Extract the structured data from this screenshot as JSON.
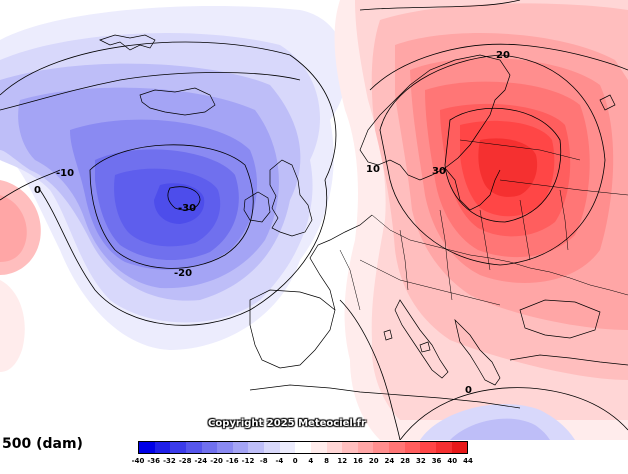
{
  "map": {
    "title": "500 (dam)",
    "copyright": "Copyright 2025 Meteociel.fr",
    "contour_labels": [
      "20",
      "10",
      "30",
      "-10",
      "0",
      "-30",
      "-20",
      "0"
    ],
    "legend": {
      "labels": [
        "-40",
        "-36",
        "-32",
        "-28",
        "-24",
        "-20",
        "-16",
        "-12",
        "-8",
        "-4",
        "0",
        "4",
        "8",
        "12",
        "16",
        "20",
        "24",
        "28",
        "32",
        "36",
        "40",
        "44"
      ],
      "colors": [
        "#0000e6",
        "#1f1fe8",
        "#3b3bea",
        "#5656ec",
        "#7070ee",
        "#8a8af2",
        "#a4a4f5",
        "#bebef8",
        "#d8d8fb",
        "#ececfd",
        "#ffffff",
        "#ffecec",
        "#ffd6d6",
        "#ffbebe",
        "#ffa6a6",
        "#ff8e8e",
        "#ff7676",
        "#ff5e5e",
        "#ff4646",
        "#f53030",
        "#e81818"
      ]
    },
    "colors": {
      "coast": "#000000",
      "contour": "#000000"
    }
  }
}
